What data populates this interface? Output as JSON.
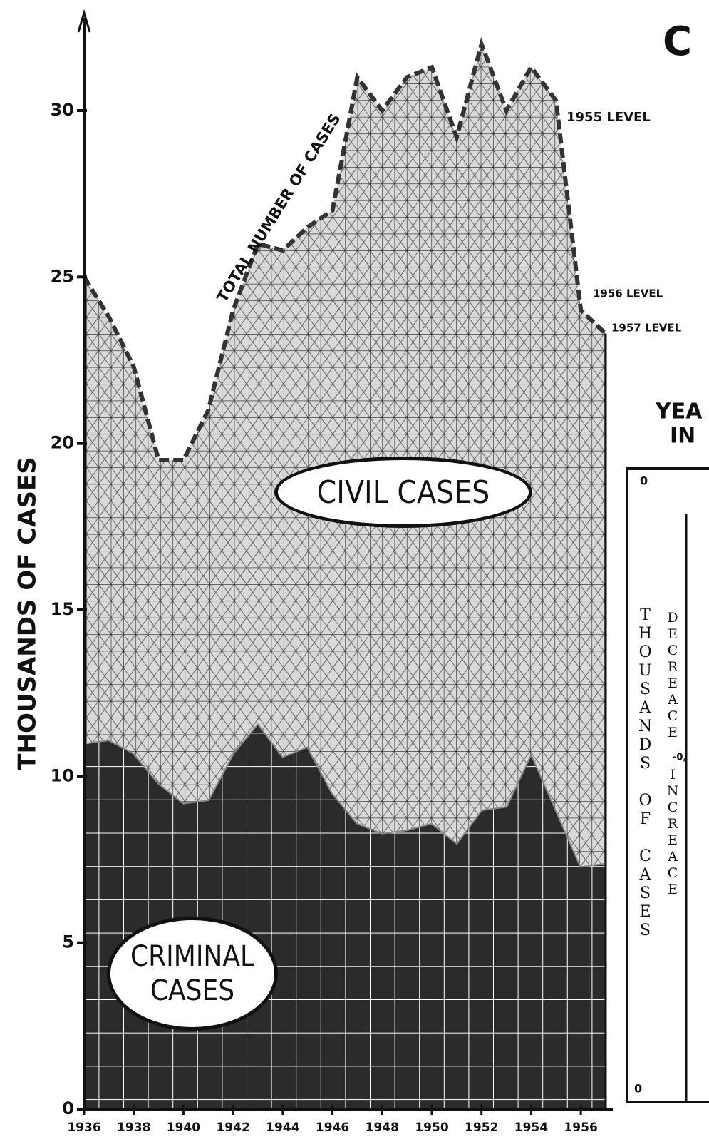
{
  "chart_data": {
    "type": "stacked_area",
    "title": "C",
    "ylabel": "THOUSANDS OF CASES",
    "x": [
      1936,
      1937,
      1938,
      1939,
      1940,
      1941,
      1942,
      1943,
      1944,
      1945,
      1946,
      1947,
      1948,
      1949,
      1950,
      1951,
      1952,
      1953,
      1954,
      1955,
      1956,
      1957
    ],
    "xlim": [
      1936,
      1957
    ],
    "xticks": [
      1936,
      1938,
      1940,
      1942,
      1944,
      1946,
      1948,
      1950,
      1952,
      1954,
      1956
    ],
    "ylim": [
      0,
      31.5
    ],
    "yticks": [
      0,
      5,
      10,
      15,
      20,
      25,
      30
    ],
    "series": [
      {
        "name": "CRIMINAL CASES",
        "color": "#2b2b2b",
        "values": [
          11,
          11.1,
          10.7,
          9.8,
          9.2,
          9.3,
          10.7,
          11.6,
          10.6,
          10.9,
          9.5,
          8.6,
          8.3,
          8.4,
          8.6,
          8.0,
          9.0,
          9.1,
          10.7,
          9.0,
          7.3,
          7.4
        ]
      },
      {
        "name": "CIVIL CASES",
        "color": "#bdbdbd",
        "values": [
          14,
          12.7,
          11.6,
          9.7,
          10.3,
          11.7,
          13.3,
          14.4,
          15.2,
          15.6,
          17.5,
          22.4,
          21.7,
          22.6,
          22.7,
          21.2,
          23,
          20.9,
          20.6,
          21.3,
          16.7,
          15.9
        ]
      }
    ],
    "annotations": [
      "TOTAL NUMBER OF CASES",
      "1955 LEVEL",
      "1956 LEVEL",
      "1957 LEVEL"
    ],
    "side_panel": {
      "lines": [
        "YEA",
        "IN"
      ],
      "inset_ylabel": "THOUSANDS OF CASES",
      "decrease": "DECREACE",
      "increase": "INCREACE",
      "mid_tick": "-0,",
      "corner_top": "0",
      "corner_bottom": "0"
    }
  }
}
